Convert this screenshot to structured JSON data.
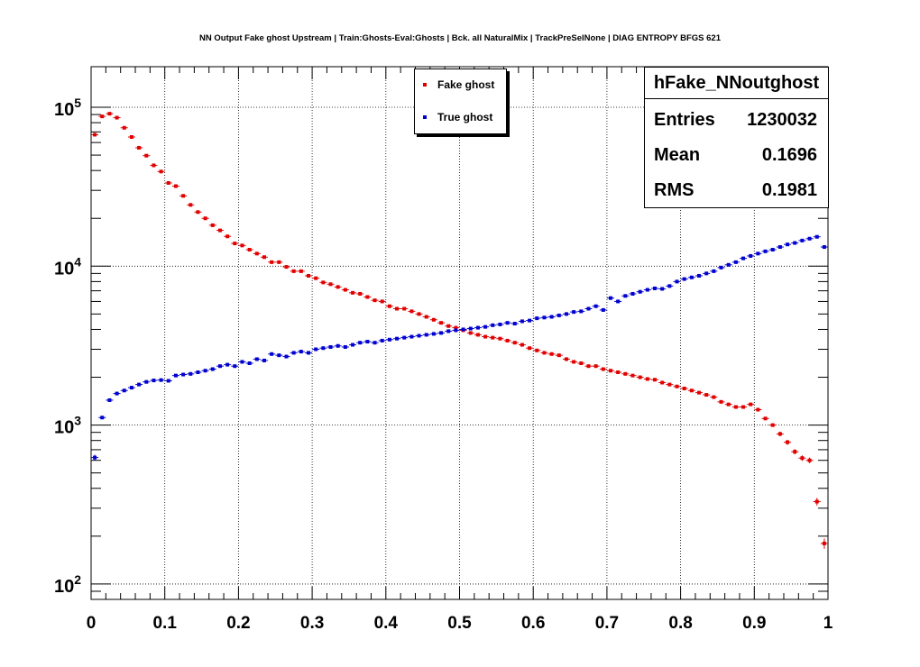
{
  "title": "NN Output Fake ghost Upstream | Train:Ghosts-Eval:Ghosts | Bck. all NaturalMix | TrackPreSelNone | DIAG ENTROPY BFGS 621",
  "colors": {
    "fake": "#e00000",
    "true": "#0000d0",
    "grid": "#000000"
  },
  "legend": [
    {
      "label": "Fake ghost",
      "color": "#e00000"
    },
    {
      "label": "True ghost",
      "color": "#0000d0"
    }
  ],
  "stats": {
    "title": "hFake_NNoutghost",
    "rows": [
      {
        "key": "Entries",
        "value": "1230032"
      },
      {
        "key": "Mean",
        "value": "0.1696"
      },
      {
        "key": "RMS",
        "value": "0.1981"
      }
    ]
  },
  "chart_data": {
    "type": "scatter",
    "title": "NN Output Fake ghost Upstream | Train:Ghosts-Eval:Ghosts | Bck. all NaturalMix | TrackPreSelNone | DIAG ENTROPY BFGS 621",
    "xlabel": "",
    "ylabel": "",
    "xlim": [
      0,
      1
    ],
    "ylim": [
      80,
      180000
    ],
    "yscale": "log",
    "grid": true,
    "legend_position": "top-center",
    "xticks": [
      "0",
      "0.1",
      "0.2",
      "0.3",
      "0.4",
      "0.5",
      "0.6",
      "0.7",
      "0.8",
      "0.9",
      "1"
    ],
    "yticks": [
      {
        "value": 100,
        "base": "10",
        "exp": "2"
      },
      {
        "value": 1000,
        "base": "10",
        "exp": "3"
      },
      {
        "value": 10000,
        "base": "10",
        "exp": "4"
      },
      {
        "value": 100000,
        "base": "10",
        "exp": "5"
      }
    ],
    "bins": 100,
    "series": [
      {
        "name": "Fake ghost",
        "color": "#e00000",
        "values": [
          67200,
          87600,
          91100,
          86000,
          74300,
          65000,
          55600,
          49600,
          43100,
          39400,
          33400,
          31900,
          27700,
          24300,
          21900,
          20000,
          18100,
          16800,
          15400,
          13900,
          13500,
          12700,
          12000,
          11400,
          10600,
          10600,
          9900,
          9300,
          9300,
          8700,
          8400,
          7900,
          7700,
          7400,
          7100,
          6800,
          6700,
          6400,
          6100,
          6000,
          5600,
          5400,
          5400,
          5200,
          5000,
          4800,
          4600,
          4400,
          4200,
          4100,
          3950,
          3800,
          3700,
          3600,
          3550,
          3500,
          3400,
          3300,
          3200,
          3050,
          2950,
          2850,
          2800,
          2750,
          2600,
          2500,
          2450,
          2350,
          2350,
          2250,
          2200,
          2150,
          2100,
          2050,
          2000,
          1950,
          1930,
          1850,
          1800,
          1750,
          1700,
          1650,
          1600,
          1550,
          1500,
          1400,
          1350,
          1300,
          1300,
          1350,
          1250,
          1100,
          1000,
          880,
          780,
          680,
          620,
          600,
          330,
          180
        ]
      },
      {
        "name": "True ghost",
        "color": "#0000d0",
        "values": [
          625,
          1115,
          1435,
          1580,
          1650,
          1720,
          1800,
          1870,
          1910,
          1920,
          1900,
          2050,
          2080,
          2100,
          2150,
          2200,
          2250,
          2350,
          2400,
          2350,
          2500,
          2450,
          2600,
          2550,
          2800,
          2750,
          2700,
          2850,
          2900,
          2850,
          3000,
          3050,
          3100,
          3150,
          3100,
          3200,
          3300,
          3350,
          3300,
          3400,
          3450,
          3500,
          3550,
          3600,
          3650,
          3700,
          3750,
          3800,
          3900,
          3950,
          4000,
          4050,
          4100,
          4150,
          4250,
          4300,
          4400,
          4350,
          4500,
          4550,
          4700,
          4750,
          4800,
          4900,
          5000,
          5150,
          5200,
          5400,
          5600,
          5300,
          6300,
          6000,
          6500,
          6700,
          6900,
          7100,
          7250,
          7200,
          7500,
          8000,
          8300,
          8500,
          8700,
          9000,
          9300,
          9800,
          10200,
          10600,
          11200,
          11600,
          12000,
          12400,
          12700,
          13200,
          13700,
          14000,
          14500,
          14900,
          15300,
          13200
        ]
      }
    ]
  }
}
